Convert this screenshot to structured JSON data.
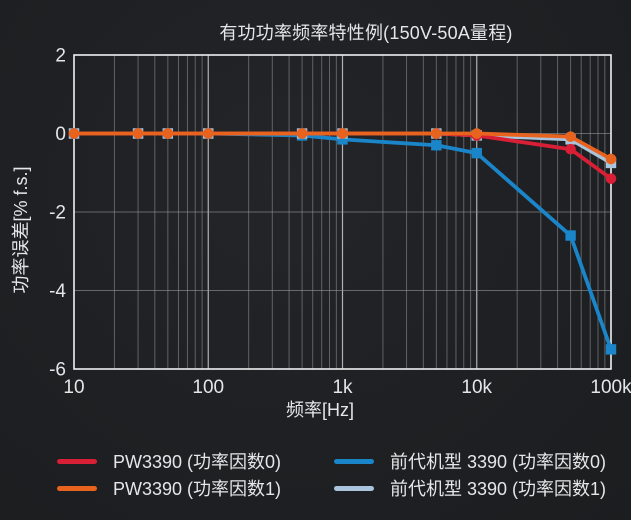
{
  "chart_data": {
    "type": "line",
    "title": "有功功率频率特性例(150V-50A量程)",
    "xlabel": "频率[Hz]",
    "ylabel": "功率误差[% f.s.]",
    "x_scale": "log",
    "x_range": [
      10,
      100000
    ],
    "y_range": [
      -6,
      2
    ],
    "grid": true,
    "legend_position": "bottom",
    "y_ticks": [
      2,
      0,
      -2,
      -4,
      -6
    ],
    "x_ticks": [
      {
        "value": 10,
        "label": "10"
      },
      {
        "value": 100,
        "label": "100"
      },
      {
        "value": 1000,
        "label": "1k"
      },
      {
        "value": 10000,
        "label": "10k"
      },
      {
        "value": 100000,
        "label": "100k"
      }
    ],
    "x": [
      10,
      30,
      50,
      100,
      500,
      1000,
      5000,
      10000,
      50000,
      100000
    ],
    "series": [
      {
        "name": "PW3390 (功率因数0)",
        "color": "#d91f35",
        "marker": "circle",
        "values": [
          0,
          0,
          0,
          0,
          0,
          0,
          0,
          -0.05,
          -0.4,
          -1.15
        ]
      },
      {
        "name": "PW3390 (功率因数1)",
        "color": "#e8641e",
        "marker": "circle",
        "values": [
          0,
          0,
          0,
          0,
          0,
          0,
          0,
          0,
          -0.08,
          -0.65
        ]
      },
      {
        "name": "前代机型 3390 (功率因数0)",
        "color": "#1a85c8",
        "marker": "square",
        "values": [
          0,
          0,
          0,
          0,
          -0.05,
          -0.15,
          -0.3,
          -0.5,
          -2.6,
          -5.5
        ]
      },
      {
        "name": "前代机型 3390 (功率因数1)",
        "color": "#aac4dd",
        "marker": "square",
        "values": [
          0,
          0,
          0,
          0,
          0,
          0,
          0,
          -0.05,
          -0.15,
          -0.75
        ]
      }
    ]
  },
  "colors": {
    "background": "#1e2023",
    "text": "#e4e6e7",
    "grid_minor": "#95989a",
    "grid_major": "#c9cbcc",
    "axis_border": "#eef0f1"
  }
}
